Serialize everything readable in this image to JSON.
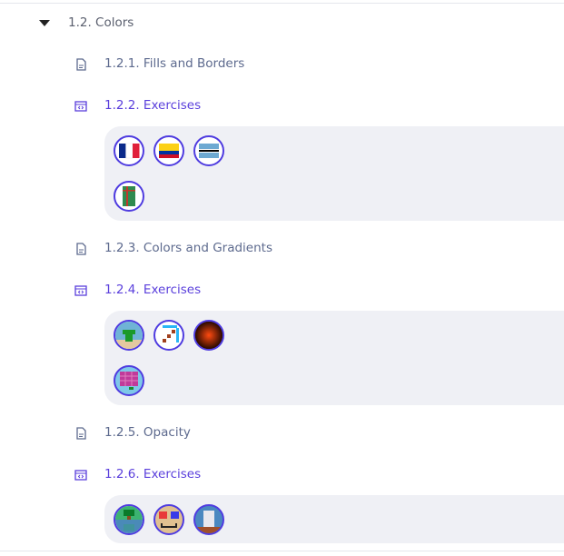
{
  "section": {
    "label": "1.2. Colors",
    "expanded": true
  },
  "items": [
    {
      "label": "1.2.1. Fills and Borders",
      "type": "lesson"
    },
    {
      "label": "1.2.2. Exercises",
      "type": "exercises",
      "thumbnails": [
        "france-flag",
        "colombia-flag",
        "botswana-flag",
        "green-gift-box"
      ]
    },
    {
      "label": "1.2.3. Colors and Gradients",
      "type": "lesson"
    },
    {
      "label": "1.2.4. Exercises",
      "type": "exercises",
      "thumbnails": [
        "green-pipe",
        "staircase",
        "red-sunset-glow",
        "pink-grid-flag"
      ]
    },
    {
      "label": "1.2.5. Opacity",
      "type": "lesson"
    },
    {
      "label": "1.2.6. Exercises",
      "type": "exercises",
      "thumbnails": [
        "tree-reflection",
        "face-3d-glasses",
        "glass-cylinder"
      ]
    }
  ],
  "colors": {
    "lesson_text": "#5d6a8e",
    "exercise_text": "#5a3fdc",
    "thumbnail_border": "#4f3ce0",
    "panel_bg": "#eff0f5"
  }
}
